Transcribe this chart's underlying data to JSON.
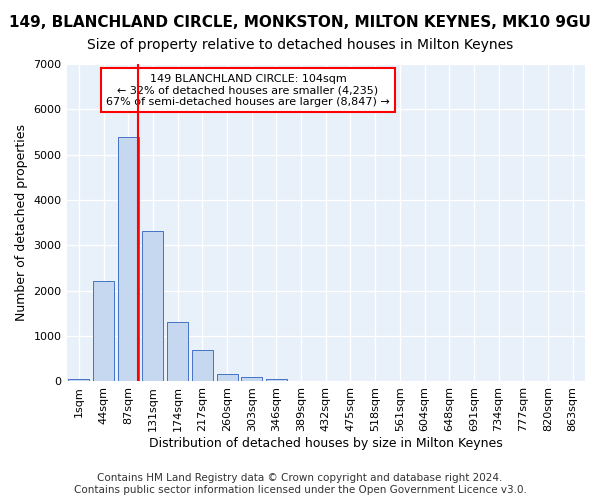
{
  "title": "149, BLANCHLAND CIRCLE, MONKSTON, MILTON KEYNES, MK10 9GU",
  "subtitle": "Size of property relative to detached houses in Milton Keynes",
  "xlabel": "Distribution of detached houses by size in Milton Keynes",
  "ylabel": "Number of detached properties",
  "footer_line1": "Contains HM Land Registry data © Crown copyright and database right 2024.",
  "footer_line2": "Contains public sector information licensed under the Open Government Licence v3.0.",
  "bin_labels": [
    "1sqm",
    "44sqm",
    "87sqm",
    "131sqm",
    "174sqm",
    "217sqm",
    "260sqm",
    "303sqm",
    "346sqm",
    "389sqm",
    "432sqm",
    "475sqm",
    "518sqm",
    "561sqm",
    "604sqm",
    "648sqm",
    "691sqm",
    "734sqm",
    "777sqm",
    "820sqm",
    "863sqm"
  ],
  "bar_values": [
    50,
    2220,
    5400,
    3320,
    1310,
    700,
    170,
    100,
    55,
    5,
    0,
    0,
    0,
    0,
    0,
    0,
    0,
    0,
    0,
    0,
    0
  ],
  "bar_color": "#c5d8f0",
  "bar_edge_color": "#4472c4",
  "vline_color": "red",
  "annotation_text": "149 BLANCHLAND CIRCLE: 104sqm\n← 32% of detached houses are smaller (4,235)\n67% of semi-detached houses are larger (8,847) →",
  "annotation_box_color": "white",
  "annotation_box_edge": "red",
  "ylim": [
    0,
    7000
  ],
  "yticks": [
    0,
    1000,
    2000,
    3000,
    4000,
    5000,
    6000,
    7000
  ],
  "bg_color": "#e8f0fa",
  "grid_color": "white",
  "title_fontsize": 11,
  "subtitle_fontsize": 10,
  "axis_label_fontsize": 9,
  "tick_fontsize": 8,
  "footer_fontsize": 7.5
}
